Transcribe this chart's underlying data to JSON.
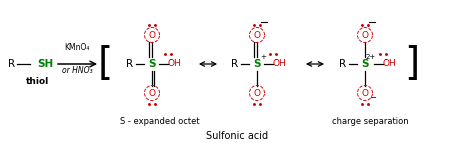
{
  "bg_color": "#ffffff",
  "text_color": "#000000",
  "green_color": "#008000",
  "red_color": "#cc0000",
  "fig_width": 4.74,
  "fig_height": 1.44,
  "dpi": 100,
  "thiol_label": "thiol",
  "reagent_line1": "KMnO₄",
  "reagent_line2": "or HNO₃",
  "label_expanded": "S - expanded octet",
  "label_charge": "charge separation",
  "label_sulfonic": "Sulfonic acid",
  "xlim": [
    0,
    474
  ],
  "ylim": [
    0,
    144
  ]
}
